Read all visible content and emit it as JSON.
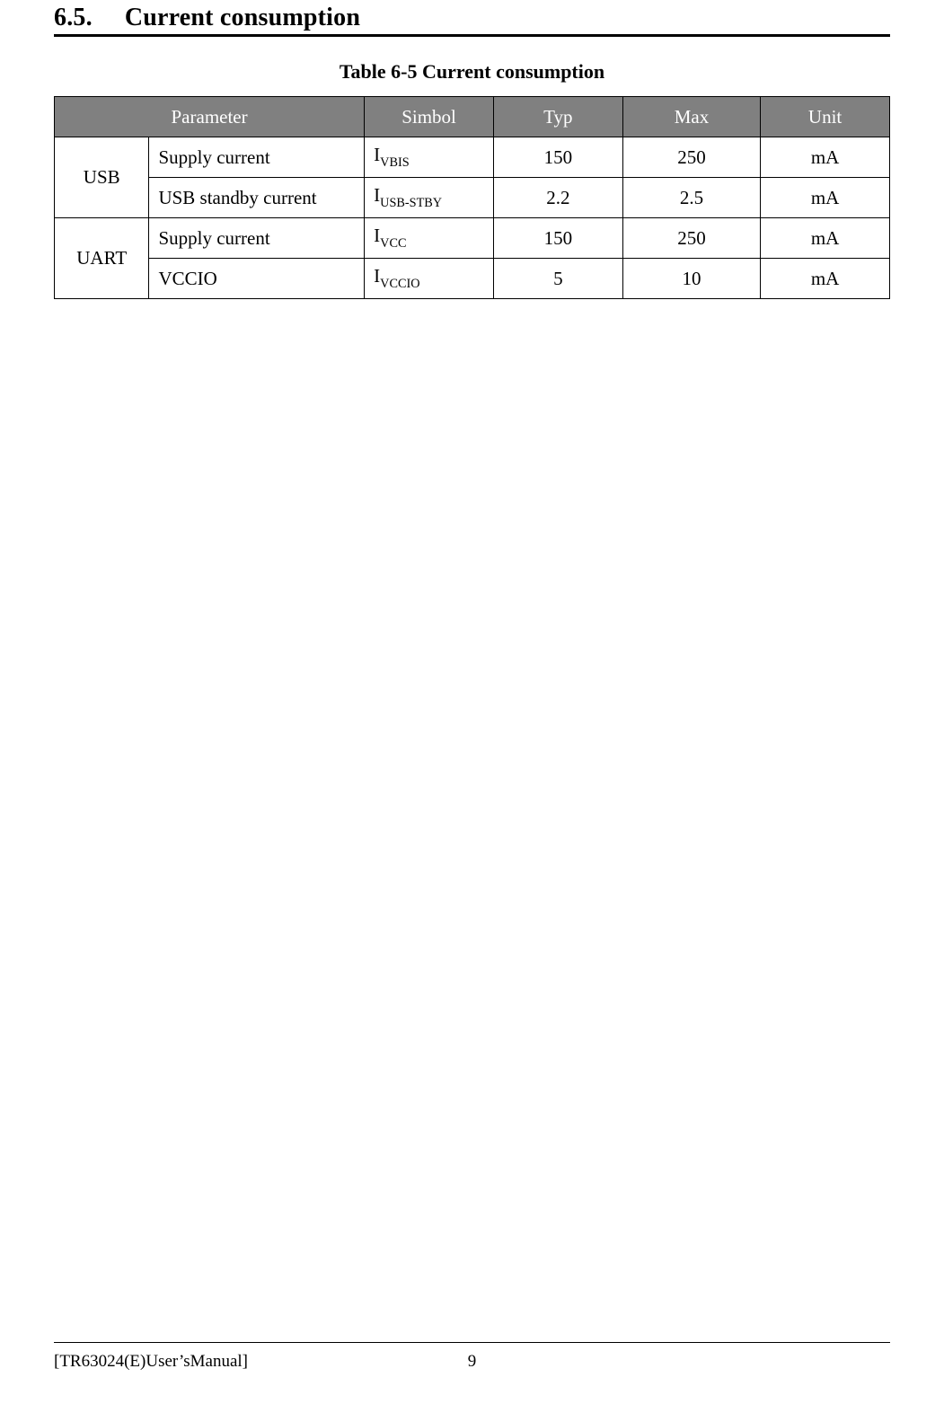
{
  "section": {
    "number": "6.5.",
    "title": "Current consumption"
  },
  "table": {
    "caption": "Table 6-5 Current consumption",
    "header_bg": "#808080",
    "header_fg": "#ffffff",
    "border_color": "#000000",
    "columns": [
      "Parameter",
      "Simbol",
      "Typ",
      "Max",
      "Unit"
    ],
    "groups": [
      {
        "label": "USB",
        "rows": [
          {
            "param": "Supply current",
            "symbol_base": "I",
            "symbol_sub": "VBIS",
            "typ": "150",
            "max": "250",
            "unit": "mA"
          },
          {
            "param": "USB standby current",
            "symbol_base": "I",
            "symbol_sub": "USB-STBY",
            "typ": "2.2",
            "max": "2.5",
            "unit": "mA"
          }
        ]
      },
      {
        "label": "UART",
        "rows": [
          {
            "param": "Supply current",
            "symbol_base": "I",
            "symbol_sub": "VCC",
            "typ": "150",
            "max": "250",
            "unit": "mA"
          },
          {
            "param": "VCCIO",
            "symbol_base": "I",
            "symbol_sub": "VCCIO",
            "typ": "5",
            "max": "10",
            "unit": "mA"
          }
        ]
      }
    ]
  },
  "footer": {
    "left": "[TR63024(E)User’sManual]",
    "page_number": "9"
  }
}
